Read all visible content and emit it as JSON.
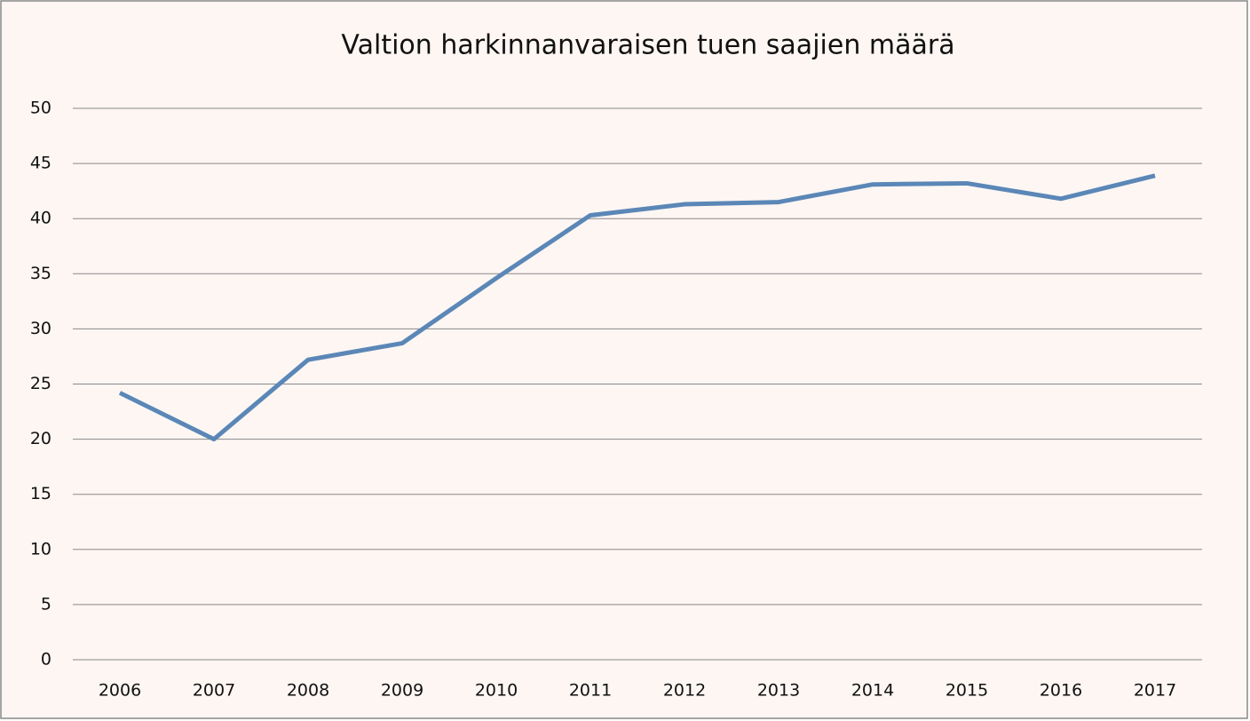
{
  "chart_data": {
    "type": "line",
    "title": "Valtion harkinnanvaraisen tuen saajien määrä",
    "categories": [
      "2006",
      "2007",
      "2008",
      "2009",
      "2010",
      "2011",
      "2012",
      "2013",
      "2014",
      "2015",
      "2016",
      "2017"
    ],
    "values": [
      24.2,
      20,
      27.2,
      28.7,
      34.6,
      40.3,
      41.3,
      41.5,
      43.1,
      43.2,
      41.8,
      43.9
    ],
    "color": "#5b87b7",
    "ylim": [
      0,
      50
    ],
    "yticks": [
      0,
      5,
      10,
      15,
      20,
      25,
      30,
      35,
      40,
      45,
      50
    ],
    "grid": true
  }
}
